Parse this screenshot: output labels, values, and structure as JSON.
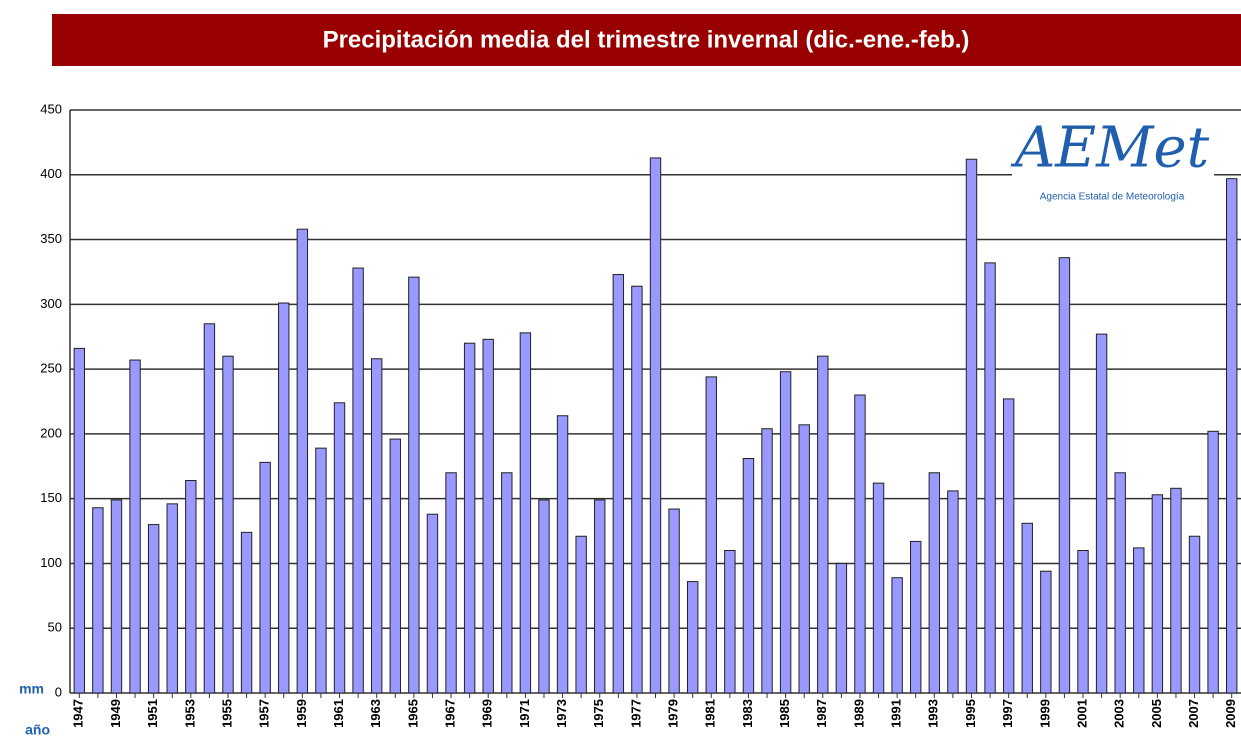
{
  "chart_data": {
    "type": "bar",
    "title": "Precipitación media del trimestre invernal (dic.-ene.-feb.)",
    "y_label": "mm",
    "x_label": "año",
    "categories": [
      "1947",
      null,
      "1949",
      null,
      "1951",
      null,
      "1953",
      null,
      "1955",
      null,
      "1957",
      null,
      "1959",
      null,
      "1961",
      null,
      "1963",
      null,
      "1965",
      null,
      "1967",
      null,
      "1969",
      null,
      "1971",
      null,
      "1973",
      null,
      "1975",
      null,
      "1977",
      null,
      "1979",
      null,
      "1981",
      null,
      "1983",
      null,
      "1985",
      null,
      "1987",
      null,
      "1989",
      null,
      "1991",
      null,
      "1993",
      null,
      "1995",
      null,
      "1997",
      null,
      "1999",
      null,
      "2001",
      null,
      "2003",
      null,
      "2005",
      null,
      "2007",
      null,
      "2009"
    ],
    "values": [
      266,
      143,
      149,
      257,
      130,
      146,
      164,
      285,
      260,
      124,
      178,
      301,
      358,
      189,
      224,
      328,
      258,
      196,
      321,
      138,
      170,
      270,
      273,
      170,
      278,
      149,
      214,
      121,
      149,
      323,
      314,
      413,
      142,
      86,
      244,
      110,
      181,
      204,
      248,
      207,
      260,
      100,
      230,
      162,
      89,
      117,
      170,
      156,
      412,
      332,
      227,
      131,
      94,
      336,
      110,
      277,
      170,
      112,
      153,
      158,
      121,
      202,
      397
    ],
    "color": "#9999ff",
    "ylim": [
      0,
      450
    ],
    "yticks": [
      0,
      50,
      100,
      150,
      200,
      250,
      300,
      350,
      400,
      450
    ],
    "grid": true
  },
  "logo": {
    "text": "AEMet",
    "subtitle": "Agencia Estatal de Meteorología"
  }
}
